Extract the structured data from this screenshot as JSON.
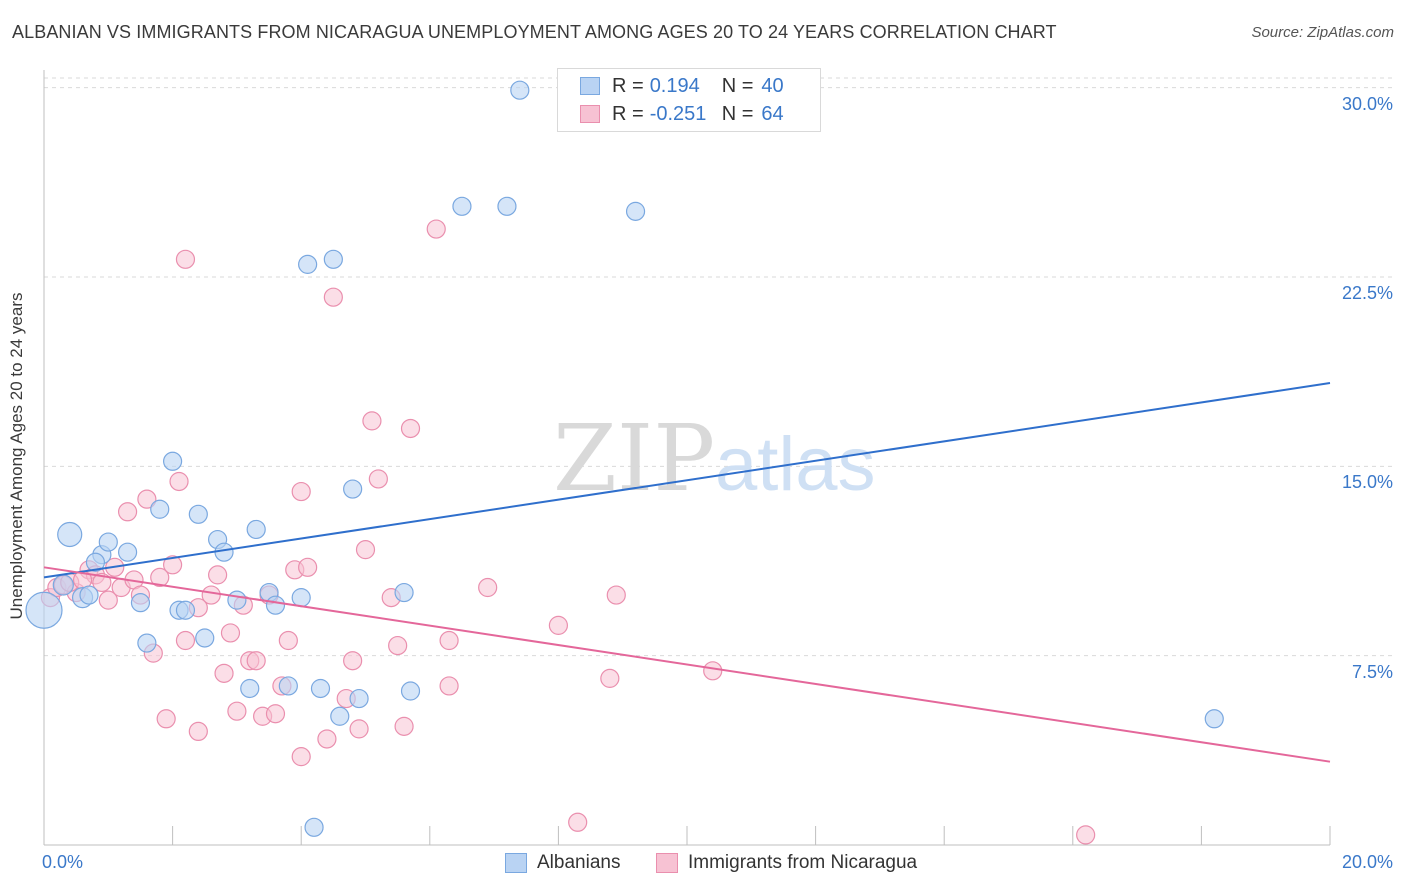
{
  "title": "ALBANIAN VS IMMIGRANTS FROM NICARAGUA UNEMPLOYMENT AMONG AGES 20 TO 24 YEARS CORRELATION CHART",
  "source": "Source: ZipAtlas.com",
  "watermark": {
    "zip": "ZIP",
    "atlas": "atlas"
  },
  "legend": {
    "rows": [
      {
        "r_label": "R =",
        "r_value": "0.194",
        "n_label": "N =",
        "n_value": "40"
      },
      {
        "r_label": "R =",
        "r_value": "-0.251",
        "n_label": "N =",
        "n_value": "64"
      }
    ]
  },
  "bottom_legend": {
    "albanians": "Albanians",
    "nicaragua": "Immigrants from Nicaragua"
  },
  "colors": {
    "blue_fill": "#b9d3f3",
    "blue_stroke": "#7aa8e0",
    "blue_line": "#2f6fcc",
    "pink_fill": "#f7c2d3",
    "pink_stroke": "#ea8fae",
    "pink_line": "#e4679a",
    "tick_text": "#3a78c9",
    "grid": "#d9d9d9"
  },
  "chart_data": {
    "type": "scatter",
    "title": "ALBANIAN VS IMMIGRANTS FROM NICARAGUA UNEMPLOYMENT AMONG AGES 20 TO 24 YEARS CORRELATION CHART",
    "xlabel": "",
    "ylabel": "Unemployment Among Ages 20 to 24 years",
    "xlim": [
      0,
      20
    ],
    "ylim": [
      0,
      30.7
    ],
    "x_tick_labels": [
      "0.0%",
      "20.0%"
    ],
    "y_ticks": [
      7.5,
      15.0,
      22.5,
      30.0
    ],
    "y_tick_labels": [
      "7.5%",
      "15.0%",
      "22.5%",
      "30.0%"
    ],
    "grid": "horizontal dashed",
    "legend_position": "top-center",
    "series": [
      {
        "name": "Albanians",
        "r": 0.194,
        "n": 40,
        "trend": {
          "x": [
            0,
            20
          ],
          "y": [
            10.6,
            18.3
          ]
        },
        "points": [
          [
            0.0,
            9.3,
            18
          ],
          [
            0.4,
            12.3,
            12
          ],
          [
            0.3,
            10.3,
            10
          ],
          [
            0.6,
            9.8,
            10
          ],
          [
            0.7,
            9.9,
            9
          ],
          [
            0.9,
            11.5,
            9
          ],
          [
            0.8,
            11.2,
            9
          ],
          [
            1.0,
            12.0,
            9
          ],
          [
            1.3,
            11.6,
            9
          ],
          [
            1.5,
            9.6,
            9
          ],
          [
            1.6,
            8.0,
            9
          ],
          [
            1.8,
            13.3,
            9
          ],
          [
            2.0,
            15.2,
            9
          ],
          [
            2.1,
            9.3,
            9
          ],
          [
            2.2,
            9.3,
            9
          ],
          [
            2.4,
            13.1,
            9
          ],
          [
            2.5,
            8.2,
            9
          ],
          [
            2.7,
            12.1,
            9
          ],
          [
            2.8,
            11.6,
            9
          ],
          [
            3.0,
            9.7,
            9
          ],
          [
            3.2,
            6.2,
            9
          ],
          [
            3.3,
            12.5,
            9
          ],
          [
            3.5,
            10.0,
            9
          ],
          [
            3.6,
            9.5,
            9
          ],
          [
            3.8,
            6.3,
            9
          ],
          [
            4.0,
            9.8,
            9
          ],
          [
            4.1,
            23.0,
            9
          ],
          [
            4.3,
            6.2,
            9
          ],
          [
            4.5,
            23.2,
            9
          ],
          [
            4.6,
            5.1,
            9
          ],
          [
            4.9,
            5.8,
            9
          ],
          [
            4.8,
            14.1,
            9
          ],
          [
            5.6,
            10.0,
            9
          ],
          [
            5.7,
            6.1,
            9
          ],
          [
            6.5,
            25.3,
            9
          ],
          [
            7.2,
            25.3,
            9
          ],
          [
            7.4,
            29.9,
            9
          ],
          [
            9.2,
            25.1,
            9
          ],
          [
            18.2,
            5.0,
            9
          ],
          [
            4.2,
            0.7,
            9
          ]
        ]
      },
      {
        "name": "Immigrants from Nicaragua",
        "r": -0.251,
        "n": 64,
        "trend": {
          "x": [
            0,
            20
          ],
          "y": [
            11.0,
            3.3
          ]
        },
        "points": [
          [
            0.1,
            9.8,
            9
          ],
          [
            0.2,
            10.2,
            9
          ],
          [
            0.3,
            10.3,
            9
          ],
          [
            0.5,
            10.0,
            9
          ],
          [
            0.7,
            10.9,
            9
          ],
          [
            0.8,
            10.7,
            9
          ],
          [
            0.9,
            10.4,
            9
          ],
          [
            1.0,
            9.7,
            9
          ],
          [
            1.1,
            11.0,
            9
          ],
          [
            1.2,
            10.2,
            9
          ],
          [
            1.3,
            13.2,
            9
          ],
          [
            1.4,
            10.5,
            9
          ],
          [
            1.5,
            9.9,
            9
          ],
          [
            1.6,
            13.7,
            9
          ],
          [
            1.7,
            7.6,
            9
          ],
          [
            1.8,
            10.6,
            9
          ],
          [
            1.9,
            5.0,
            9
          ],
          [
            2.0,
            11.1,
            9
          ],
          [
            2.1,
            14.4,
            9
          ],
          [
            2.2,
            8.1,
            9
          ],
          [
            2.4,
            9.4,
            9
          ],
          [
            2.2,
            23.2,
            9
          ],
          [
            2.4,
            4.5,
            9
          ],
          [
            2.6,
            9.9,
            9
          ],
          [
            2.7,
            10.7,
            9
          ],
          [
            2.8,
            6.8,
            9
          ],
          [
            2.9,
            8.4,
            9
          ],
          [
            3.0,
            5.3,
            9
          ],
          [
            3.1,
            9.5,
            9
          ],
          [
            3.2,
            7.3,
            9
          ],
          [
            3.3,
            7.3,
            9
          ],
          [
            3.4,
            5.1,
            9
          ],
          [
            3.5,
            9.9,
            9
          ],
          [
            3.6,
            5.2,
            9
          ],
          [
            3.7,
            6.3,
            9
          ],
          [
            3.8,
            8.1,
            9
          ],
          [
            3.9,
            10.9,
            9
          ],
          [
            4.0,
            14.0,
            9
          ],
          [
            4.0,
            3.5,
            9
          ],
          [
            4.1,
            11.0,
            9
          ],
          [
            4.4,
            4.2,
            9
          ],
          [
            4.5,
            21.7,
            9
          ],
          [
            4.7,
            5.8,
            9
          ],
          [
            4.8,
            7.3,
            9
          ],
          [
            4.9,
            4.6,
            9
          ],
          [
            5.0,
            11.7,
            9
          ],
          [
            5.1,
            16.8,
            9
          ],
          [
            5.2,
            14.5,
            9
          ],
          [
            5.4,
            9.8,
            9
          ],
          [
            5.5,
            7.9,
            9
          ],
          [
            5.6,
            4.7,
            9
          ],
          [
            5.7,
            16.5,
            9
          ],
          [
            6.1,
            24.4,
            9
          ],
          [
            6.3,
            6.3,
            9
          ],
          [
            6.3,
            8.1,
            9
          ],
          [
            6.9,
            10.2,
            9
          ],
          [
            8.0,
            8.7,
            9
          ],
          [
            8.3,
            0.9,
            9
          ],
          [
            8.8,
            6.6,
            9
          ],
          [
            8.9,
            9.9,
            9
          ],
          [
            10.4,
            6.9,
            9
          ],
          [
            16.2,
            0.4,
            9
          ],
          [
            0.4,
            10.4,
            9
          ],
          [
            0.6,
            10.5,
            9
          ]
        ]
      }
    ]
  }
}
